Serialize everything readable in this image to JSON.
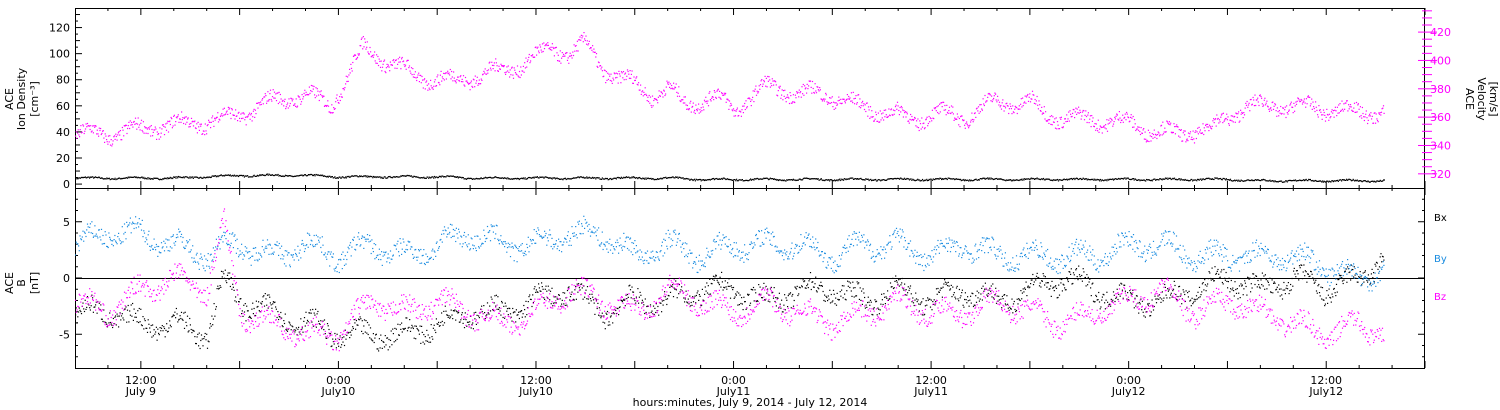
{
  "colors": {
    "black": "#000000",
    "magenta": "#ff00ff",
    "blue": "#1a8ce0"
  },
  "x_axis": {
    "title": "hours:minutes, July  9, 2014 - July 12, 2014",
    "ticks": [
      {
        "t": 12,
        "time": "12:00",
        "day": "July 9"
      },
      {
        "t": 24,
        "time": "0:00",
        "day": "July10"
      },
      {
        "t": 36,
        "time": "12:00",
        "day": "July10"
      },
      {
        "t": 48,
        "time": "0:00",
        "day": "July11"
      },
      {
        "t": 60,
        "time": "12:00",
        "day": "July11"
      },
      {
        "t": 72,
        "time": "0:00",
        "day": "July12"
      },
      {
        "t": 84,
        "time": "12:00",
        "day": "July12"
      }
    ],
    "range": [
      8,
      90
    ]
  },
  "chart_data": [
    {
      "type": "scatter",
      "ylabel_left": [
        "ACE",
        "Ion Density",
        "[cm⁻³]"
      ],
      "ylabel_right": [
        "ACE",
        "Velocity",
        "[km/s]"
      ],
      "ylim_left": [
        -3,
        135
      ],
      "ylim_right": [
        310,
        437
      ],
      "yticks_left": [
        0,
        20,
        40,
        60,
        80,
        100,
        120
      ],
      "yticks_right": [
        320,
        340,
        360,
        380,
        400,
        420
      ],
      "series": [
        {
          "axis": "left",
          "color": "black",
          "x": [
            8,
            10,
            12,
            14,
            16,
            18,
            20,
            22,
            24,
            26,
            28,
            30,
            32,
            34,
            36,
            38,
            40,
            42,
            44,
            46,
            48,
            50,
            52,
            54,
            56,
            58,
            60,
            62,
            64,
            66,
            68,
            70,
            72,
            74,
            76,
            78,
            80,
            82,
            84,
            86,
            87.5
          ],
          "y": [
            5,
            5,
            5,
            5,
            6,
            7,
            7,
            7,
            6,
            6,
            6,
            6,
            5,
            5,
            5,
            5,
            5,
            5,
            5,
            4,
            4,
            4,
            4,
            4,
            4,
            4,
            4,
            4,
            4,
            4,
            4,
            4,
            4,
            4,
            4,
            4,
            3,
            3,
            3,
            3,
            3
          ]
        },
        {
          "axis": "right",
          "color": "magenta",
          "x": [
            8,
            10,
            12,
            14,
            16,
            18,
            20,
            22,
            23.5,
            24.5,
            25.5,
            27,
            29,
            31,
            33,
            35,
            36,
            37,
            38,
            39,
            40,
            41,
            42,
            43,
            44,
            45,
            46,
            47,
            48,
            49,
            50,
            51,
            52,
            53,
            54,
            55,
            56,
            57,
            58,
            59,
            60,
            61,
            62,
            63,
            64,
            65,
            66,
            67,
            68,
            69,
            70,
            71,
            72,
            73,
            74,
            75,
            76,
            77,
            78,
            79,
            80,
            81,
            82,
            83,
            84,
            85,
            86,
            87.5
          ],
          "y": [
            349,
            348,
            352,
            355,
            357,
            362,
            372,
            376,
            369,
            388,
            410,
            399,
            388,
            386,
            391,
            397,
            403,
            409,
            405,
            412,
            395,
            388,
            384,
            376,
            380,
            370,
            372,
            374,
            366,
            374,
            382,
            380,
            376,
            378,
            375,
            370,
            367,
            364,
            362,
            358,
            363,
            362,
            360,
            367,
            371,
            370,
            371,
            362,
            360,
            359,
            358,
            358,
            356,
            352,
            350,
            348,
            351,
            352,
            360,
            368,
            368,
            368,
            368,
            367,
            366,
            365,
            364,
            364
          ]
        }
      ]
    },
    {
      "type": "scatter",
      "ylabel_left": [
        "ACE",
        "B",
        "[nT]"
      ],
      "ylim": [
        -8,
        8
      ],
      "yticks": [
        -5,
        0,
        5
      ],
      "legend": [
        "Bx",
        "By",
        "Bz"
      ],
      "series": [
        {
          "name": "Bx",
          "color": "black",
          "x": [
            8,
            10,
            12,
            14,
            16,
            17,
            18,
            20,
            22,
            24,
            26,
            28,
            30,
            32,
            34,
            36,
            38,
            40,
            42,
            44,
            46,
            48,
            50,
            52,
            54,
            56,
            58,
            60,
            62,
            64,
            66,
            68,
            70,
            72,
            74,
            76,
            78,
            80,
            82,
            84,
            86,
            87.5
          ],
          "y": [
            -3,
            -3,
            -4,
            -4,
            -5,
            0,
            -2,
            -3,
            -4,
            -5,
            -5,
            -5,
            -4,
            -3,
            -3,
            -2,
            -1,
            -3,
            -2,
            -2,
            -1,
            -1,
            -2,
            -1,
            -1,
            -2,
            -1,
            -2,
            -1,
            -2,
            -1,
            0,
            -1,
            -2,
            -2,
            -1,
            0,
            -1,
            0,
            -1,
            0,
            2
          ]
        },
        {
          "name": "By",
          "color": "blue",
          "x": [
            8,
            10,
            12,
            14,
            16,
            17,
            18,
            20,
            22,
            24,
            26,
            28,
            30,
            32,
            34,
            36,
            38,
            40,
            42,
            44,
            46,
            48,
            50,
            52,
            54,
            56,
            58,
            60,
            62,
            64,
            66,
            68,
            70,
            72,
            74,
            76,
            78,
            80,
            82,
            84,
            86,
            87.5
          ],
          "y": [
            3,
            4,
            4,
            3,
            2,
            3,
            3,
            2,
            3,
            2,
            3,
            2,
            3,
            4,
            3,
            3,
            4,
            4,
            2,
            3,
            2,
            3,
            3,
            3,
            2,
            3,
            3,
            2,
            3,
            2,
            2,
            2,
            2,
            3,
            3,
            2,
            2,
            2,
            2,
            1,
            0,
            1
          ]
        },
        {
          "name": "Bz",
          "color": "magenta",
          "x": [
            8,
            10,
            12,
            14,
            16,
            17,
            18,
            20,
            22,
            24,
            26,
            28,
            30,
            32,
            34,
            36,
            38,
            40,
            42,
            44,
            46,
            48,
            50,
            52,
            54,
            56,
            58,
            60,
            62,
            64,
            66,
            68,
            70,
            72,
            74,
            76,
            78,
            80,
            82,
            84,
            86,
            87.5
          ],
          "y": [
            -2,
            -3,
            -1,
            0,
            -1,
            5,
            -3,
            -4,
            -5,
            -5,
            -2,
            -3,
            -2,
            -3,
            -4,
            -3,
            -1,
            -2,
            -3,
            -1,
            -2,
            -3,
            -2,
            -3,
            -4,
            -3,
            -2,
            -3,
            -3,
            -2,
            -3,
            -4,
            -3,
            -2,
            -1,
            -3,
            -2,
            -3,
            -4,
            -5,
            -4,
            -5
          ]
        }
      ]
    }
  ]
}
